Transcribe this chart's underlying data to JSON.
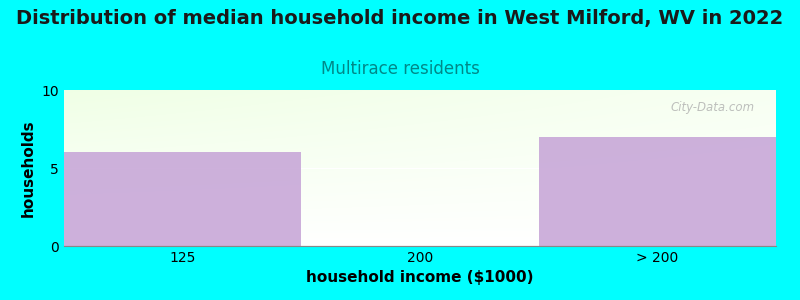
{
  "title": "Distribution of median household income in West Milford, WV in 2022",
  "subtitle": "Multirace residents",
  "xlabel": "household income ($1000)",
  "ylabel": "households",
  "categories": [
    "125",
    "200",
    "> 200"
  ],
  "values": [
    6,
    0,
    7
  ],
  "bar_color": "#c8a8d8",
  "bar_alpha": 0.9,
  "ylim": [
    0,
    10
  ],
  "yticks": [
    0,
    5,
    10
  ],
  "background_color": "#00FFFF",
  "title_fontsize": 14,
  "subtitle_fontsize": 12,
  "subtitle_color": "#008888",
  "axis_label_fontsize": 11,
  "tick_fontsize": 10,
  "watermark": "City-Data.com"
}
